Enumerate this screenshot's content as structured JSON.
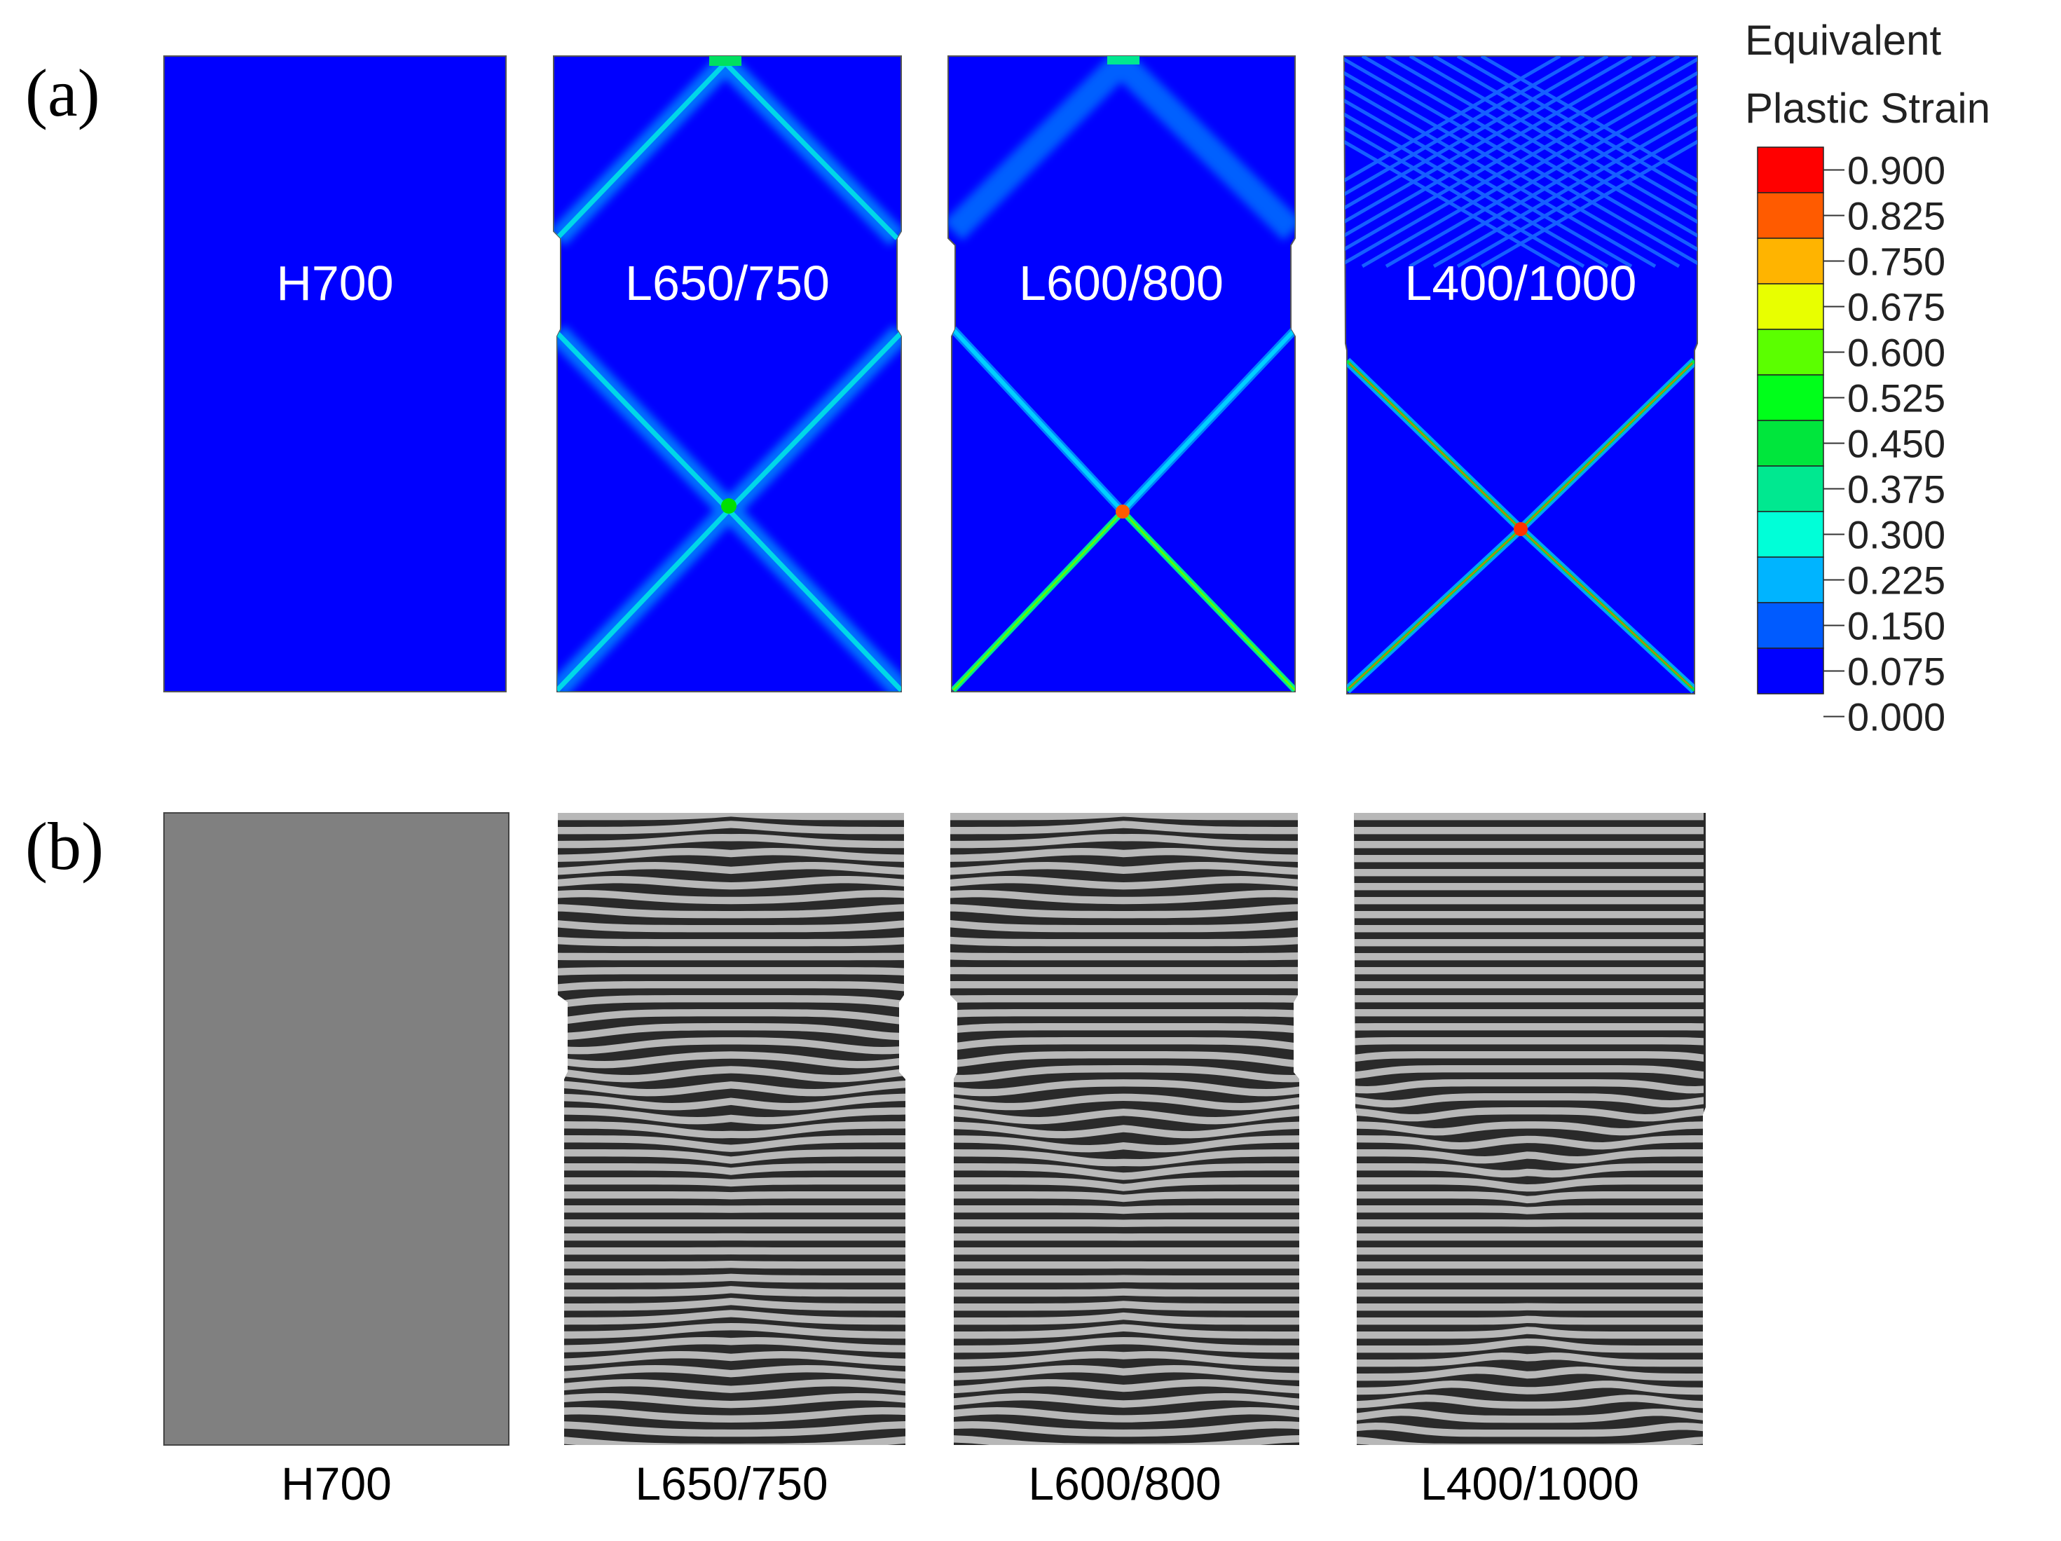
{
  "panel_a": {
    "label": "(a)",
    "samples": [
      {
        "name": "H700",
        "strain": "none"
      },
      {
        "name": "L650/750",
        "strain": "moderate"
      },
      {
        "name": "L600/800",
        "strain": "high"
      },
      {
        "name": "L400/1000",
        "strain": "highest"
      }
    ]
  },
  "panel_b": {
    "label": "(b)",
    "samples": [
      {
        "name": "H700",
        "layered": false
      },
      {
        "name": "L650/750",
        "layered": true
      },
      {
        "name": "L600/800",
        "layered": true
      },
      {
        "name": "L400/1000",
        "layered": true
      }
    ]
  },
  "legend": {
    "title_line1": "Equivalent",
    "title_line2": "Plastic Strain",
    "ticks": [
      "0.900",
      "0.825",
      "0.750",
      "0.675",
      "0.600",
      "0.525",
      "0.450",
      "0.375",
      "0.300",
      "0.225",
      "0.150",
      "0.075",
      "0.000"
    ],
    "colors": [
      "#ff0000",
      "#ff5b00",
      "#ffb400",
      "#e8ff00",
      "#5bff00",
      "#00ff1a",
      "#00e63c",
      "#00e890",
      "#00ffd8",
      "#00b4ff",
      "#005bff",
      "#0000ff"
    ]
  },
  "colors": {
    "field_background": "#0000ff",
    "solid_gray": "#808080",
    "stripe_dark": "#2a2a2a",
    "stripe_light": "#b8b8b8"
  }
}
